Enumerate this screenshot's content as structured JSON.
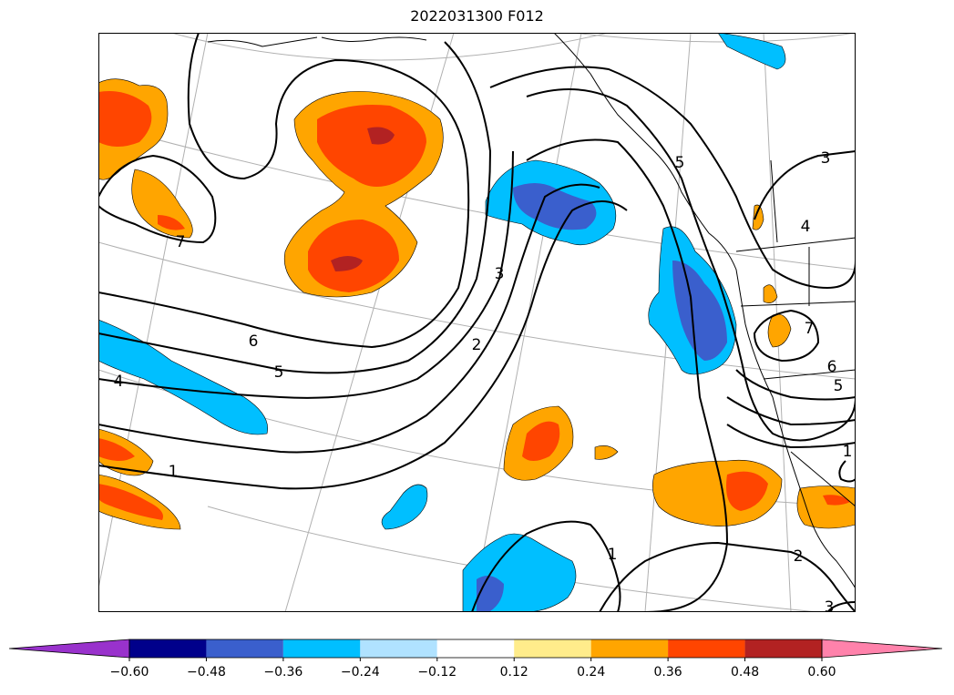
{
  "title": "2022031300 F012",
  "map": {
    "field_colors": {
      "land_outline": "#000000",
      "gridline": "#b0b0b0",
      "contour": "#000000"
    },
    "contour_labels": [
      "7",
      "6",
      "5",
      "4",
      "3",
      "2",
      "1",
      "3",
      "5",
      "4",
      "7",
      "6",
      "5",
      "1",
      "1",
      "2",
      "3"
    ]
  },
  "colorbar": {
    "ticks": [
      "−0.60",
      "−0.48",
      "−0.36",
      "−0.24",
      "−0.12",
      "0.12",
      "0.24",
      "0.36",
      "0.48",
      "0.60"
    ],
    "bins": [
      {
        "color": "#9932cc"
      },
      {
        "color": "#00008b"
      },
      {
        "color": "#3a5fcd"
      },
      {
        "color": "#00bfff"
      },
      {
        "color": "#b0e2ff"
      },
      {
        "color": "#ffffff"
      },
      {
        "color": "#ffec8b"
      },
      {
        "color": "#ffa500"
      },
      {
        "color": "#ff4500"
      },
      {
        "color": "#b22222"
      },
      {
        "color": "#ff82ab"
      }
    ]
  }
}
